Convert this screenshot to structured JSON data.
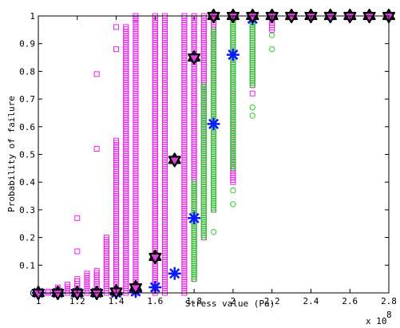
{
  "chart_data": {
    "type": "scatter",
    "title": "",
    "xlabel": "Stress value (Pa)",
    "ylabel": "Probability of failure",
    "x_exponent_label": "x 10",
    "x_exponent_power": "8",
    "xlim": [
      1.0,
      2.8
    ],
    "ylim": [
      0,
      1
    ],
    "x_ticks": [
      1,
      1.2,
      1.4,
      1.6,
      1.8,
      2,
      2.2,
      2.4,
      2.6,
      2.8
    ],
    "x_tick_labels": [
      "1",
      "1.2",
      "1.4",
      "1.6",
      "1.8",
      "2",
      "2.2",
      "2.4",
      "2.6",
      "2.8"
    ],
    "y_ticks": [
      0,
      0.1,
      0.2,
      0.3,
      0.4,
      0.5,
      0.6,
      0.7,
      0.8,
      0.9,
      1
    ],
    "y_tick_labels": [
      "0",
      "0.1",
      "0.2",
      "0.3",
      "0.4",
      "0.5",
      "0.6",
      "0.7",
      "0.8",
      "0.9",
      "1"
    ],
    "grid": false,
    "colors": {
      "magenta": "#ee22ee",
      "green": "#33cc33",
      "blue": "#0a1aff",
      "star_outline": "#000000",
      "star_fill": "#dd44dd"
    },
    "series": [
      {
        "marker": "square",
        "color": "magenta",
        "columns": [
          {
            "x": 1.0,
            "ymin": 0,
            "ymax": 0.005
          },
          {
            "x": 1.05,
            "ymin": 0,
            "ymax": 0.005
          },
          {
            "x": 1.1,
            "ymin": 0,
            "ymax": 0.02
          },
          {
            "x": 1.15,
            "ymin": 0,
            "ymax": 0.03
          },
          {
            "x": 1.2,
            "ymin": 0,
            "ymax": 0.05
          },
          {
            "x": 1.25,
            "ymin": 0,
            "ymax": 0.07
          },
          {
            "x": 1.3,
            "ymin": 0,
            "ymax": 0.08
          },
          {
            "x": 1.35,
            "ymin": 0,
            "ymax": 0.2
          },
          {
            "x": 1.4,
            "ymin": 0,
            "ymax": 0.55
          },
          {
            "x": 1.45,
            "ymin": 0,
            "ymax": 0.96
          },
          {
            "x": 1.5,
            "ymin": 0,
            "ymax": 1
          },
          {
            "x": 1.6,
            "ymin": 0,
            "ymax": 1
          },
          {
            "x": 1.65,
            "ymin": 0,
            "ymax": 1
          },
          {
            "x": 1.75,
            "ymin": 0,
            "ymax": 1
          },
          {
            "x": 1.8,
            "ymin": 0.05,
            "ymax": 1
          },
          {
            "x": 1.85,
            "ymin": 0.2,
            "ymax": 1
          },
          {
            "x": 1.9,
            "ymin": 0.3,
            "ymax": 1
          },
          {
            "x": 2.0,
            "ymin": 0.4,
            "ymax": 1
          },
          {
            "x": 2.1,
            "ymin": 0.75,
            "ymax": 1
          },
          {
            "x": 2.2,
            "ymin": 0.95,
            "ymax": 1
          }
        ],
        "outliers": [
          {
            "x": 1.2,
            "y": 0.15
          },
          {
            "x": 1.2,
            "y": 0.27
          },
          {
            "x": 1.3,
            "y": 0.52
          },
          {
            "x": 1.3,
            "y": 0.79
          },
          {
            "x": 1.4,
            "y": 0.96
          },
          {
            "x": 1.4,
            "y": 0.88
          },
          {
            "x": 1.5,
            "y": 0.99
          },
          {
            "x": 2.1,
            "y": 0.72
          }
        ]
      },
      {
        "marker": "circle",
        "color": "green",
        "columns": [
          {
            "x": 1.8,
            "ymin": 0.05,
            "ymax": 0.4
          },
          {
            "x": 1.85,
            "ymin": 0.2,
            "ymax": 0.75
          },
          {
            "x": 1.9,
            "ymin": 0.3,
            "ymax": 0.95
          },
          {
            "x": 2.0,
            "ymin": 0.45,
            "ymax": 1
          },
          {
            "x": 2.1,
            "ymin": 0.75,
            "ymax": 1
          }
        ],
        "outliers": [
          {
            "x": 1.9,
            "y": 0.22
          },
          {
            "x": 2.0,
            "y": 0.37
          },
          {
            "x": 2.0,
            "y": 0.32
          },
          {
            "x": 2.1,
            "y": 0.67
          },
          {
            "x": 2.1,
            "y": 0.64
          },
          {
            "x": 2.2,
            "y": 0.93
          },
          {
            "x": 2.2,
            "y": 0.88
          }
        ]
      },
      {
        "name": "",
        "marker": "asterisk",
        "color": "blue",
        "points": [
          {
            "x": 1.0,
            "y": 0
          },
          {
            "x": 1.1,
            "y": 0
          },
          {
            "x": 1.2,
            "y": 0
          },
          {
            "x": 1.3,
            "y": 0
          },
          {
            "x": 1.4,
            "y": 0
          },
          {
            "x": 1.5,
            "y": 0.005
          },
          {
            "x": 1.6,
            "y": 0.02
          },
          {
            "x": 1.7,
            "y": 0.07
          },
          {
            "x": 1.8,
            "y": 0.27
          },
          {
            "x": 1.9,
            "y": 0.61
          },
          {
            "x": 2.0,
            "y": 0.86
          },
          {
            "x": 2.1,
            "y": 0.99
          }
        ]
      },
      {
        "name": "",
        "marker": "hexagram",
        "color": "star_fill",
        "points": [
          {
            "x": 1.0,
            "y": 0
          },
          {
            "x": 1.1,
            "y": 0
          },
          {
            "x": 1.2,
            "y": 0
          },
          {
            "x": 1.3,
            "y": 0
          },
          {
            "x": 1.4,
            "y": 0.005
          },
          {
            "x": 1.5,
            "y": 0.02
          },
          {
            "x": 1.6,
            "y": 0.13
          },
          {
            "x": 1.7,
            "y": 0.48
          },
          {
            "x": 1.8,
            "y": 0.85
          },
          {
            "x": 1.9,
            "y": 1
          },
          {
            "x": 2.0,
            "y": 1
          },
          {
            "x": 2.1,
            "y": 1
          },
          {
            "x": 2.2,
            "y": 1
          },
          {
            "x": 2.3,
            "y": 1
          },
          {
            "x": 2.4,
            "y": 1
          },
          {
            "x": 2.5,
            "y": 1
          },
          {
            "x": 2.6,
            "y": 1
          },
          {
            "x": 2.7,
            "y": 1
          },
          {
            "x": 2.8,
            "y": 1
          }
        ]
      }
    ]
  }
}
